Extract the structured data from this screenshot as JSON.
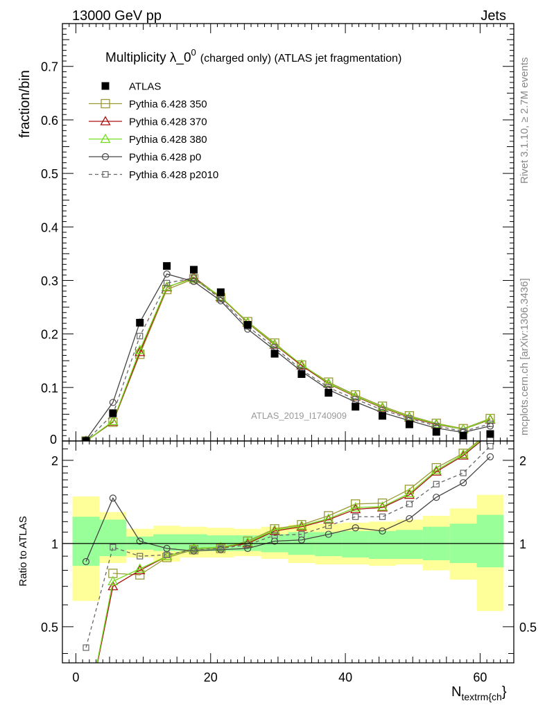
{
  "header": {
    "left": "13000 GeV pp",
    "right": "Jets"
  },
  "side_labels": {
    "rivet": "Rivet 3.1.10, ≥ 2.7M events",
    "mcplots": "mcplots.cern.ch [arXiv:1306.3436]"
  },
  "chart_data": {
    "type": "line",
    "title_main": "Multiplicity λ_0",
    "title_sup": "0",
    "title_rest": "(charged only) (ATLAS jet fragmentation)",
    "watermark": "ATLAS_2019_I1740909",
    "ylabel": "fraction/bin",
    "ratio_ylabel": "Ratio to ATLAS",
    "xlabel_main": "N",
    "xlabel_sub": "textrm{ch",
    "xlabel_tail": "}",
    "xlim": [
      -2,
      65
    ],
    "ylim": [
      0,
      0.78
    ],
    "ratio_ylim": [
      0.37,
      2.35
    ],
    "x_ticks": [
      0,
      20,
      40,
      60
    ],
    "x_tick_labels": [
      "0",
      "20",
      "40",
      "60"
    ],
    "y_ticks": [
      0.1,
      0.2,
      0.3,
      0.4,
      0.5,
      0.6,
      0.7
    ],
    "y_tick_labels": [
      "0.1",
      "0.2",
      "0.3",
      "0.4",
      "0.5",
      "0.6",
      "0.7"
    ],
    "y_zero_label": "0",
    "ratio_ticks": [
      0.5,
      1,
      2
    ],
    "ratio_tick_labels": [
      "0.5",
      "1",
      "2"
    ],
    "grid": false,
    "legend_position": "top-left",
    "x": [
      1.5,
      5.5,
      9.5,
      13.5,
      17.5,
      21.5,
      25.5,
      29.5,
      33.5,
      37.5,
      41.5,
      45.5,
      49.5,
      53.5,
      57.5,
      61.5
    ],
    "bin_edges": [
      -0.5,
      3.5,
      7.5,
      11.5,
      15.5,
      19.5,
      23.5,
      27.5,
      31.5,
      35.5,
      39.5,
      43.5,
      47.5,
      51.5,
      55.5,
      59.5,
      63.5
    ],
    "band_inner": [
      [
        0.83,
        1.25
      ],
      [
        0.9,
        1.22
      ],
      [
        0.95,
        1.06
      ],
      [
        0.94,
        1.08
      ],
      [
        0.94,
        1.08
      ],
      [
        0.94,
        1.07
      ],
      [
        0.94,
        1.07
      ],
      [
        0.93,
        1.08
      ],
      [
        0.91,
        1.1
      ],
      [
        0.9,
        1.1
      ],
      [
        0.89,
        1.11
      ],
      [
        0.88,
        1.11
      ],
      [
        0.88,
        1.12
      ],
      [
        0.87,
        1.15
      ],
      [
        0.85,
        1.18
      ],
      [
        0.82,
        1.27
      ]
    ],
    "band_outer": [
      [
        0.62,
        1.48
      ],
      [
        0.85,
        1.3
      ],
      [
        0.89,
        1.13
      ],
      [
        0.86,
        1.16
      ],
      [
        0.89,
        1.15
      ],
      [
        0.89,
        1.14
      ],
      [
        0.9,
        1.13
      ],
      [
        0.88,
        1.15
      ],
      [
        0.85,
        1.17
      ],
      [
        0.84,
        1.18
      ],
      [
        0.84,
        1.19
      ],
      [
        0.83,
        1.2
      ],
      [
        0.84,
        1.22
      ],
      [
        0.8,
        1.26
      ],
      [
        0.74,
        1.34
      ],
      [
        0.57,
        1.5
      ]
    ],
    "series": [
      {
        "name": "ATLAS",
        "color": "#000000",
        "marker": "filled-square",
        "dash": "none",
        "values": [
          0.0,
          0.052,
          0.221,
          0.327,
          0.32,
          0.278,
          0.217,
          0.163,
          0.125,
          0.09,
          0.064,
          0.047,
          0.031,
          0.017,
          0.01,
          0.013
        ]
      },
      {
        "name": "Pythia 6.428 350",
        "color": "#999933",
        "marker": "open-square",
        "dash": "none",
        "values": [
          0.0,
          0.035,
          0.162,
          0.283,
          0.303,
          0.268,
          0.223,
          0.183,
          0.142,
          0.11,
          0.086,
          0.065,
          0.047,
          0.033,
          0.023,
          0.042
        ],
        "ratio": [
          null,
          0.78,
          0.77,
          0.89,
          0.95,
          0.96,
          1.02,
          1.13,
          1.17,
          1.26,
          1.39,
          1.4,
          1.57,
          1.88,
          2.12,
          2.55
        ]
      },
      {
        "name": "Pythia 6.428 370",
        "color": "#aa1111",
        "marker": "open-triangle",
        "dash": "none",
        "values": [
          0.0,
          0.036,
          0.166,
          0.287,
          0.306,
          0.269,
          0.221,
          0.18,
          0.141,
          0.107,
          0.083,
          0.062,
          0.044,
          0.031,
          0.022,
          0.04
        ],
        "ratio": [
          0.23,
          0.7,
          0.8,
          0.9,
          0.96,
          0.97,
          1.0,
          1.11,
          1.15,
          1.22,
          1.33,
          1.35,
          1.5,
          1.82,
          2.08,
          2.5
        ]
      },
      {
        "name": "Pythia 6.428 380",
        "color": "#77dd22",
        "marker": "open-triangle",
        "dash": "none",
        "values": [
          0.0,
          0.037,
          0.17,
          0.288,
          0.304,
          0.27,
          0.222,
          0.181,
          0.143,
          0.108,
          0.084,
          0.063,
          0.045,
          0.032,
          0.022,
          0.041
        ],
        "ratio": [
          0.23,
          0.73,
          0.81,
          0.9,
          0.96,
          0.97,
          1.01,
          1.12,
          1.16,
          1.23,
          1.35,
          1.36,
          1.52,
          1.84,
          2.1,
          2.52
        ]
      },
      {
        "name": "Pythia 6.428 p0",
        "color": "#444444",
        "marker": "open-circle",
        "dash": "none",
        "values": [
          0.002,
          0.072,
          0.222,
          0.312,
          0.298,
          0.262,
          0.209,
          0.17,
          0.13,
          0.096,
          0.073,
          0.053,
          0.038,
          0.024,
          0.016,
          0.028
        ],
        "ratio": [
          0.86,
          1.46,
          1.02,
          0.96,
          0.94,
          0.95,
          0.96,
          1.02,
          1.03,
          1.08,
          1.14,
          1.11,
          1.23,
          1.47,
          1.66,
          2.06
        ]
      },
      {
        "name": "Pythia 6.428 p2010",
        "color": "#666666",
        "marker": "open-square-small",
        "dash": "5,4",
        "values": [
          0.0,
          0.05,
          0.196,
          0.295,
          0.305,
          0.265,
          0.214,
          0.175,
          0.133,
          0.1,
          0.078,
          0.058,
          0.042,
          0.028,
          0.018,
          0.032
        ],
        "ratio": [
          0.42,
          0.97,
          0.9,
          0.91,
          0.95,
          0.96,
          0.99,
          1.07,
          1.08,
          1.16,
          1.25,
          1.25,
          1.39,
          1.64,
          1.8,
          2.25
        ]
      }
    ]
  }
}
